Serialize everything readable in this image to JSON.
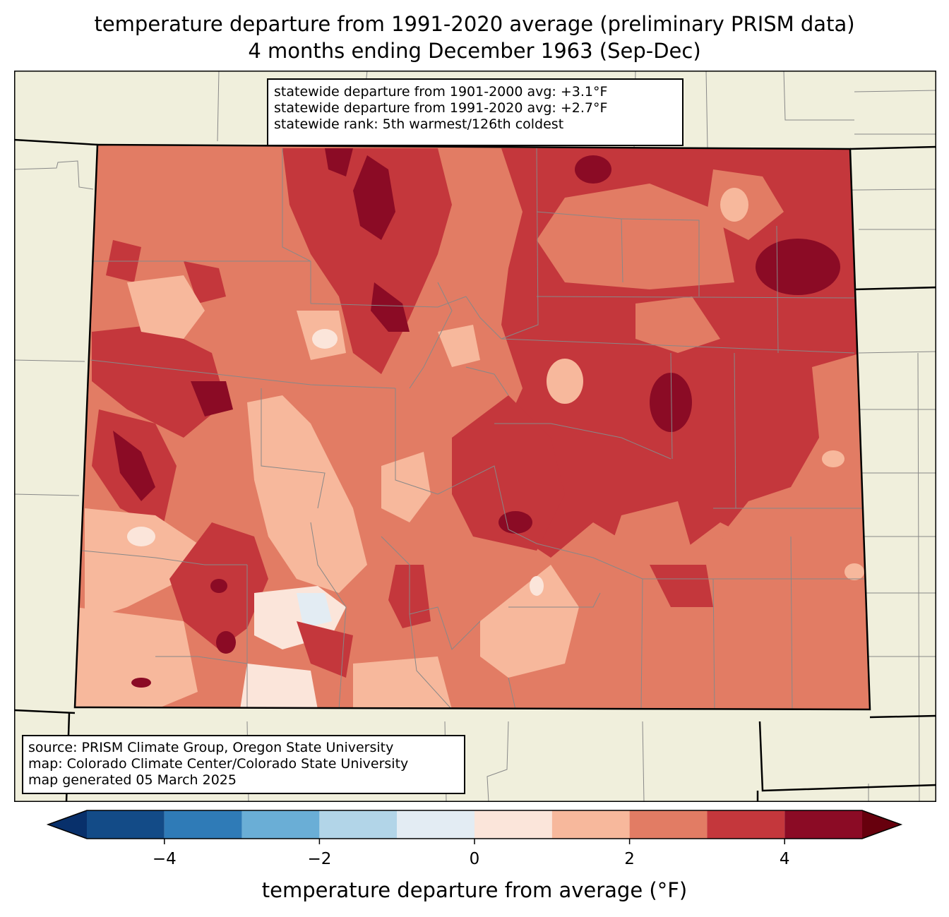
{
  "title": {
    "line1": "temperature departure from 1991-2020 average (preliminary PRISM data)",
    "line2": "4 months ending December 1963 (Sep-Dec)"
  },
  "stats": {
    "line1": "statewide departure from 1901-2000 avg: +3.1°F",
    "line2": "statewide departure from 1991-2020 avg: +2.7°F",
    "line3": "statewide rank: 5th warmest/126th coldest"
  },
  "credits": {
    "line1": "source: PRISM Climate Group, Oregon State University",
    "line2": "map: Colorado Climate Center/Colorado State University",
    "line3": "map generated 05 March 2025"
  },
  "colorbar": {
    "label": "temperature departure from average (°F)",
    "ticks": [
      "−4",
      "−2",
      "0",
      "2",
      "4"
    ],
    "tick_values": [
      -4,
      -2,
      0,
      2,
      4
    ],
    "min": -5,
    "max": 5,
    "boundaries": [
      -5,
      -4,
      -3,
      -2,
      -1,
      0,
      1,
      2,
      3,
      4,
      5
    ],
    "colors": [
      "#134b87",
      "#2f7bb7",
      "#6aaed6",
      "#b2d5e8",
      "#e3ecf3",
      "#fbe5da",
      "#f7b89c",
      "#e27c64",
      "#c4373c",
      "#8b0b25"
    ],
    "under_color": "#08306b",
    "over_color": "#67000d"
  },
  "map_colors": {
    "background": "#f0efdc",
    "county_lines": "#888888",
    "state_lines": "#000000"
  }
}
